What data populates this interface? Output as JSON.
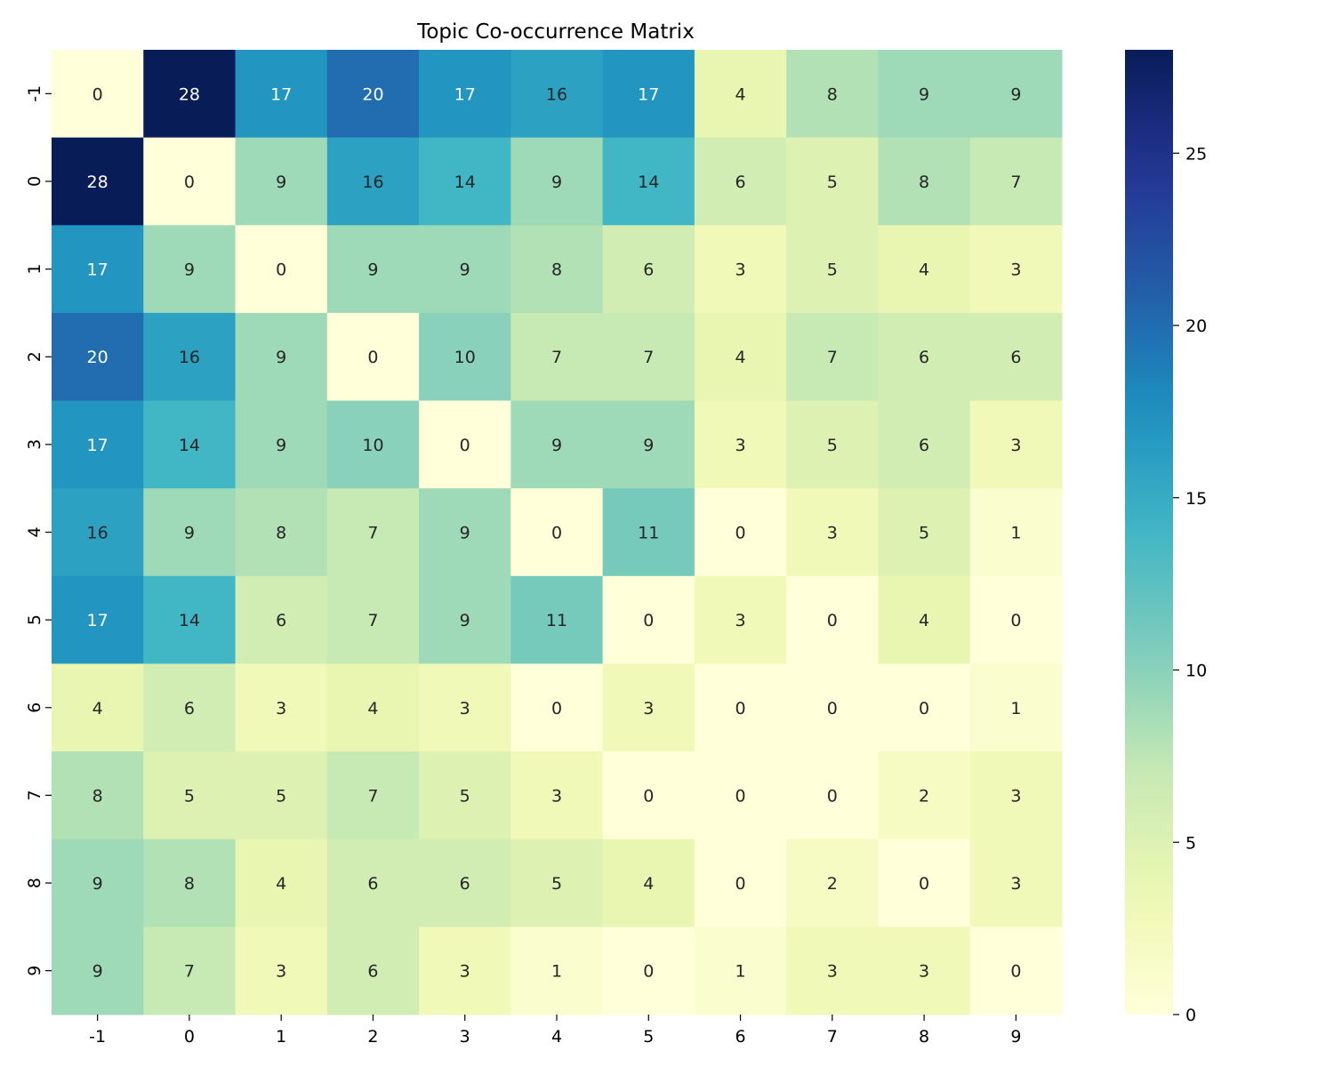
{
  "chart_data": {
    "type": "heatmap",
    "title": "Topic Co-occurrence Matrix",
    "xlabel": "",
    "ylabel": "",
    "x_categories": [
      "-1",
      "0",
      "1",
      "2",
      "3",
      "4",
      "5",
      "6",
      "7",
      "8",
      "9"
    ],
    "y_categories": [
      "-1",
      "0",
      "1",
      "2",
      "3",
      "4",
      "5",
      "6",
      "7",
      "8",
      "9"
    ],
    "values": [
      [
        0,
        28,
        17,
        20,
        17,
        16,
        17,
        4,
        8,
        9,
        9
      ],
      [
        28,
        0,
        9,
        16,
        14,
        9,
        14,
        6,
        5,
        8,
        7
      ],
      [
        17,
        9,
        0,
        9,
        9,
        8,
        6,
        3,
        5,
        4,
        3
      ],
      [
        20,
        16,
        9,
        0,
        10,
        7,
        7,
        4,
        7,
        6,
        6
      ],
      [
        17,
        14,
        9,
        10,
        0,
        9,
        9,
        3,
        5,
        6,
        3
      ],
      [
        16,
        9,
        8,
        7,
        9,
        0,
        11,
        0,
        3,
        5,
        1
      ],
      [
        17,
        14,
        6,
        7,
        9,
        11,
        0,
        3,
        0,
        4,
        0
      ],
      [
        4,
        6,
        3,
        4,
        3,
        0,
        3,
        0,
        0,
        0,
        1
      ],
      [
        8,
        5,
        5,
        7,
        5,
        3,
        0,
        0,
        0,
        2,
        3
      ],
      [
        9,
        8,
        4,
        6,
        6,
        5,
        4,
        0,
        2,
        0,
        3
      ],
      [
        9,
        7,
        3,
        6,
        3,
        1,
        0,
        1,
        3,
        3,
        0
      ]
    ],
    "colormap": "YlGnBu",
    "vmin": 0,
    "vmax": 28,
    "colorbar_ticks": [
      "0",
      "5",
      "10",
      "15",
      "20",
      "25"
    ],
    "annotations": true
  }
}
